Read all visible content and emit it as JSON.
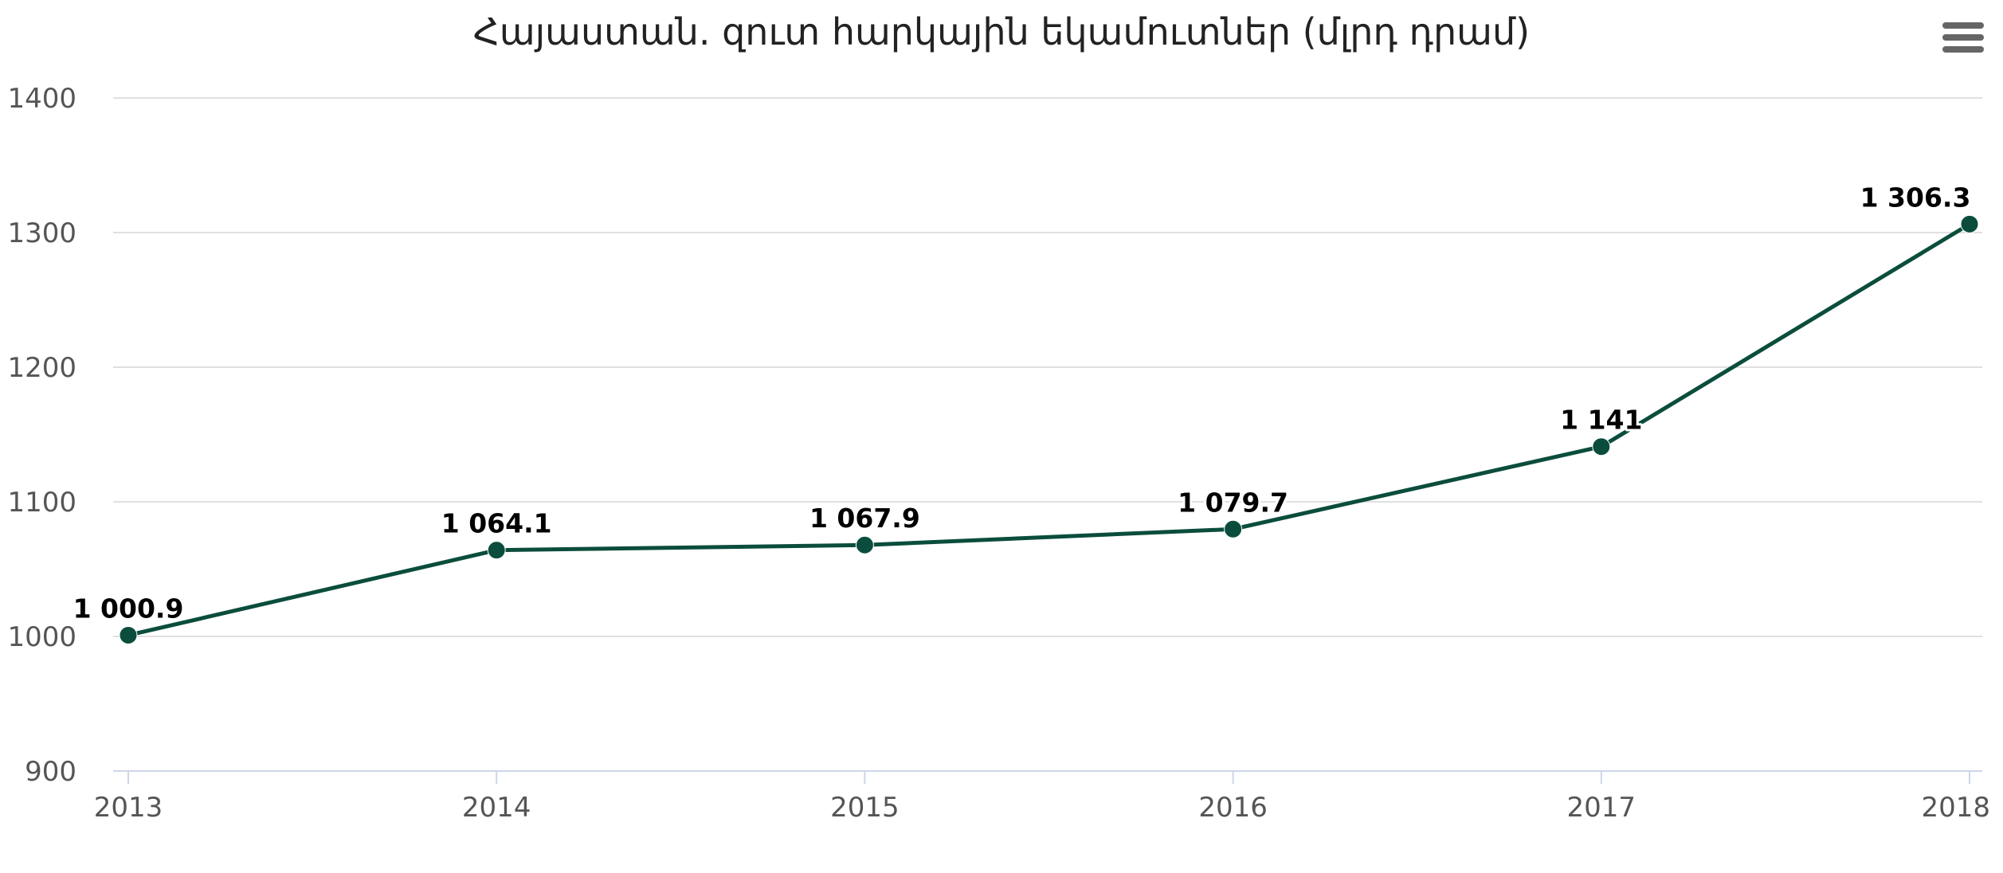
{
  "chart_data": {
    "type": "line",
    "title": "Հայաստան. զուտ հարկային եկամուտներ (մլրդ դրամ)",
    "x": [
      "2013",
      "2014",
      "2015",
      "2016",
      "2017",
      "2018"
    ],
    "series": [
      {
        "values": [
          1000.9,
          1064.1,
          1067.9,
          1079.7,
          1141,
          1306.3
        ],
        "labels": [
          "1 000.9",
          "1 064.1",
          "1 067.9",
          "1 079.7",
          "1 141",
          "1 306.3"
        ]
      }
    ],
    "y_ticks": [
      900,
      1000,
      1100,
      1200,
      1300,
      1400
    ],
    "ylim": [
      900,
      1400
    ],
    "xlabel": "",
    "ylabel": "",
    "grid": true,
    "legend": false,
    "colors": {
      "line": "#0b4d3c",
      "marker": "#0b4d3c",
      "grid": "#e0e0e0",
      "axis": "#ccd6eb"
    }
  },
  "menu": {
    "icon": "hamburger-menu-icon"
  }
}
